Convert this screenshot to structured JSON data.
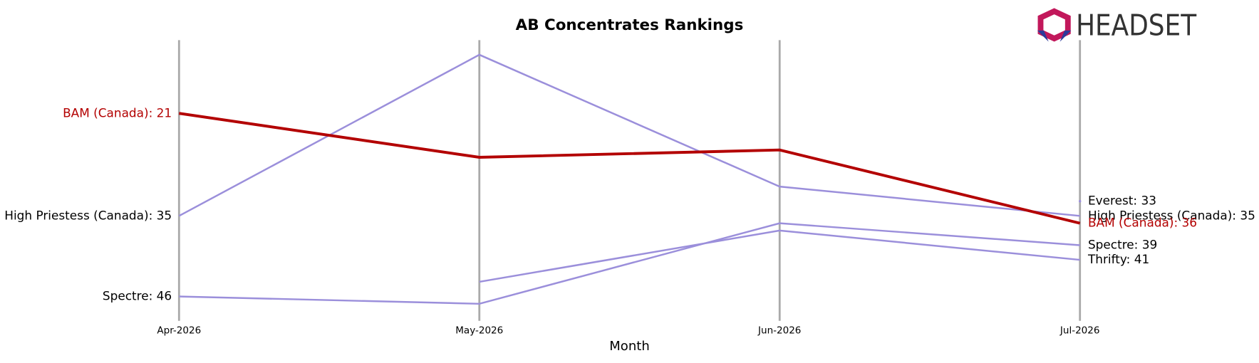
{
  "logo": "HEADSET",
  "chart_data": {
    "type": "line",
    "title": "AB Concentrates Rankings",
    "x_label": "Month",
    "categories": [
      "Apr-2026",
      "May-2026",
      "Jun-2026",
      "Jul-2026"
    ],
    "ylim": [
      49,
      11
    ],
    "inverted": true,
    "series": [
      {
        "name": "High Priestess (Canada)",
        "color": "#9b8fdb",
        "values": [
          35,
          13,
          31,
          35
        ],
        "start_label": "High Priestess (Canada): 35",
        "end_label": "High Priestess (Canada): 35"
      },
      {
        "name": "Spectre",
        "color": "#9b8fdb",
        "values": [
          46,
          47,
          36,
          39
        ],
        "start_label": "Spectre: 46",
        "end_label": "Spectre: 39"
      },
      {
        "name": "Thrifty",
        "color": "#9b8fdb",
        "values": [
          null,
          44,
          37,
          41
        ],
        "end_label": "Thrifty: 41"
      },
      {
        "name": "Everest",
        "color": "#9b8fdb",
        "values": [
          null,
          null,
          null,
          33
        ],
        "end_label": "Everest: 33"
      },
      {
        "name": "BAM (Canada)",
        "color": "#b30000",
        "highlight": true,
        "values": [
          21,
          27,
          26,
          36
        ],
        "start_label": "BAM (Canada): 21",
        "end_label": "BAM (Canada): 36"
      }
    ]
  }
}
